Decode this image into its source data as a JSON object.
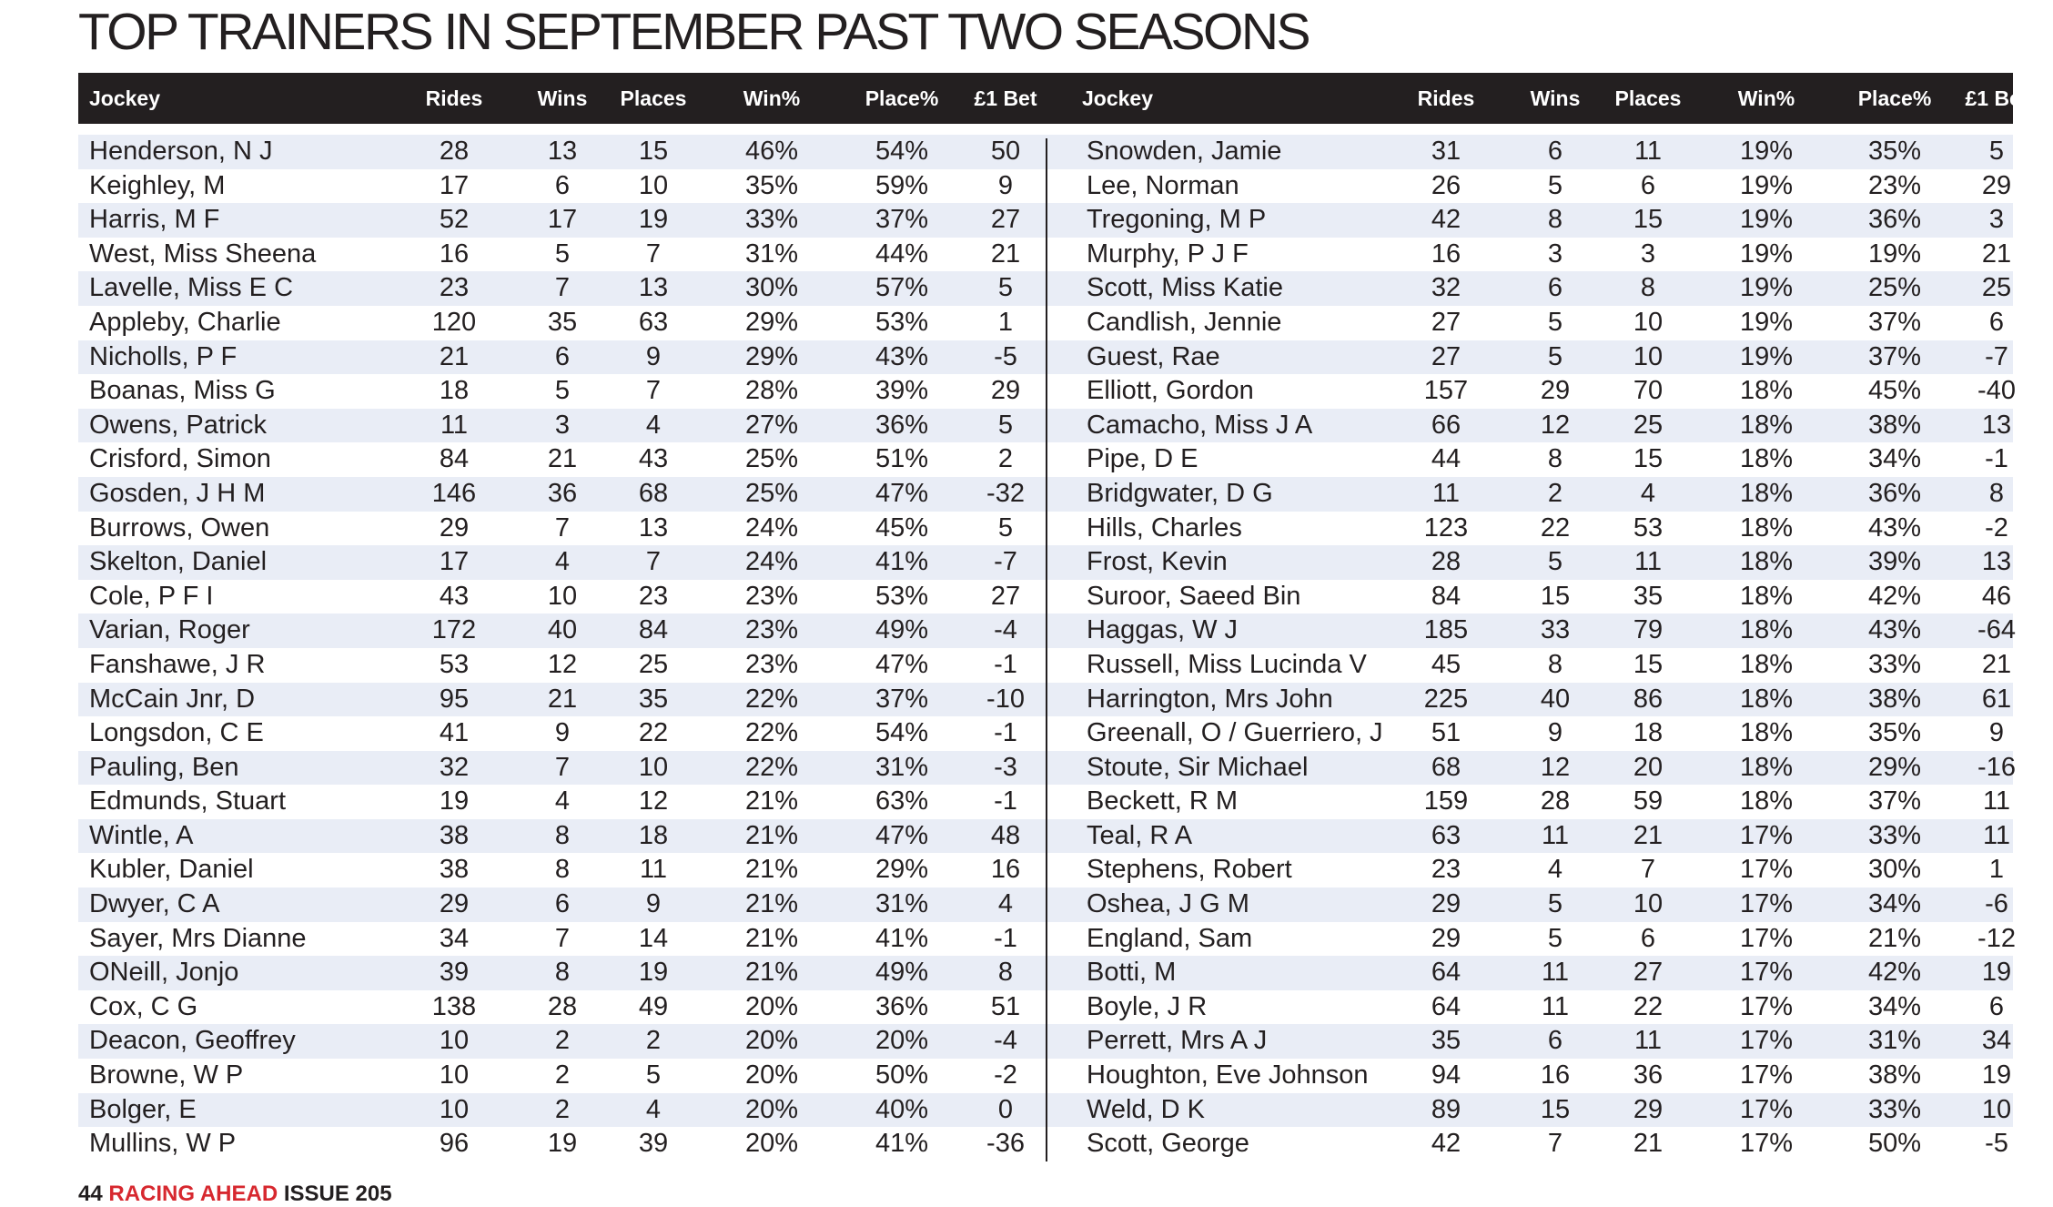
{
  "title": "TOP TRAINERS IN SEPTEMBER PAST TWO SEASONS",
  "columns": [
    "Jockey",
    "Rides",
    "Wins",
    "Places",
    "Win%",
    "Place%",
    "£1 Bet"
  ],
  "left_rows": [
    [
      "Henderson, N J",
      "28",
      "13",
      "15",
      "46%",
      "54%",
      "50"
    ],
    [
      "Keighley, M",
      "17",
      "6",
      "10",
      "35%",
      "59%",
      "9"
    ],
    [
      "Harris, M F",
      "52",
      "17",
      "19",
      "33%",
      "37%",
      "27"
    ],
    [
      "West, Miss Sheena",
      "16",
      "5",
      "7",
      "31%",
      "44%",
      "21"
    ],
    [
      "Lavelle, Miss E C",
      "23",
      "7",
      "13",
      "30%",
      "57%",
      "5"
    ],
    [
      "Appleby, Charlie",
      "120",
      "35",
      "63",
      "29%",
      "53%",
      "1"
    ],
    [
      "Nicholls, P F",
      "21",
      "6",
      "9",
      "29%",
      "43%",
      "-5"
    ],
    [
      "Boanas, Miss G",
      "18",
      "5",
      "7",
      "28%",
      "39%",
      "29"
    ],
    [
      "Owens, Patrick",
      "11",
      "3",
      "4",
      "27%",
      "36%",
      "5"
    ],
    [
      "Crisford, Simon",
      "84",
      "21",
      "43",
      "25%",
      "51%",
      "2"
    ],
    [
      "Gosden, J H M",
      "146",
      "36",
      "68",
      "25%",
      "47%",
      "-32"
    ],
    [
      "Burrows, Owen",
      "29",
      "7",
      "13",
      "24%",
      "45%",
      "5"
    ],
    [
      "Skelton, Daniel",
      "17",
      "4",
      "7",
      "24%",
      "41%",
      "-7"
    ],
    [
      "Cole, P F I",
      "43",
      "10",
      "23",
      "23%",
      "53%",
      "27"
    ],
    [
      "Varian, Roger",
      "172",
      "40",
      "84",
      "23%",
      "49%",
      "-4"
    ],
    [
      "Fanshawe, J R",
      "53",
      "12",
      "25",
      "23%",
      "47%",
      "-1"
    ],
    [
      "McCain Jnr, D",
      "95",
      "21",
      "35",
      "22%",
      "37%",
      "-10"
    ],
    [
      "Longsdon, C E",
      "41",
      "9",
      "22",
      "22%",
      "54%",
      "-1"
    ],
    [
      "Pauling, Ben",
      "32",
      "7",
      "10",
      "22%",
      "31%",
      "-3"
    ],
    [
      "Edmunds, Stuart",
      "19",
      "4",
      "12",
      "21%",
      "63%",
      "-1"
    ],
    [
      "Wintle, A",
      "38",
      "8",
      "18",
      "21%",
      "47%",
      "48"
    ],
    [
      "Kubler, Daniel",
      "38",
      "8",
      "11",
      "21%",
      "29%",
      "16"
    ],
    [
      "Dwyer, C A",
      "29",
      "6",
      "9",
      "21%",
      "31%",
      "4"
    ],
    [
      "Sayer, Mrs Dianne",
      "34",
      "7",
      "14",
      "21%",
      "41%",
      "-1"
    ],
    [
      "ONeill, Jonjo",
      "39",
      "8",
      "19",
      "21%",
      "49%",
      "8"
    ],
    [
      "Cox, C G",
      "138",
      "28",
      "49",
      "20%",
      "36%",
      "51"
    ],
    [
      "Deacon, Geoffrey",
      "10",
      "2",
      "2",
      "20%",
      "20%",
      "-4"
    ],
    [
      "Browne, W P",
      "10",
      "2",
      "5",
      "20%",
      "50%",
      "-2"
    ],
    [
      "Bolger, E",
      "10",
      "2",
      "4",
      "20%",
      "40%",
      "0"
    ],
    [
      "Mullins, W P",
      "96",
      "19",
      "39",
      "20%",
      "41%",
      "-36"
    ]
  ],
  "right_rows": [
    [
      "Snowden, Jamie",
      "31",
      "6",
      "11",
      "19%",
      "35%",
      "5"
    ],
    [
      "Lee, Norman",
      "26",
      "5",
      "6",
      "19%",
      "23%",
      "29"
    ],
    [
      "Tregoning, M P",
      "42",
      "8",
      "15",
      "19%",
      "36%",
      "3"
    ],
    [
      "Murphy, P J F",
      "16",
      "3",
      "3",
      "19%",
      "19%",
      "21"
    ],
    [
      "Scott, Miss Katie",
      "32",
      "6",
      "8",
      "19%",
      "25%",
      "25"
    ],
    [
      "Candlish, Jennie",
      "27",
      "5",
      "10",
      "19%",
      "37%",
      "6"
    ],
    [
      "Guest, Rae",
      "27",
      "5",
      "10",
      "19%",
      "37%",
      "-7"
    ],
    [
      "Elliott, Gordon",
      "157",
      "29",
      "70",
      "18%",
      "45%",
      "-40"
    ],
    [
      "Camacho, Miss J A",
      "66",
      "12",
      "25",
      "18%",
      "38%",
      "13"
    ],
    [
      "Pipe, D E",
      "44",
      "8",
      "15",
      "18%",
      "34%",
      "-1"
    ],
    [
      "Bridgwater, D G",
      "11",
      "2",
      "4",
      "18%",
      "36%",
      "8"
    ],
    [
      "Hills, Charles",
      "123",
      "22",
      "53",
      "18%",
      "43%",
      "-2"
    ],
    [
      "Frost, Kevin",
      "28",
      "5",
      "11",
      "18%",
      "39%",
      "13"
    ],
    [
      "Suroor, Saeed Bin",
      "84",
      "15",
      "35",
      "18%",
      "42%",
      "46"
    ],
    [
      "Haggas, W J",
      "185",
      "33",
      "79",
      "18%",
      "43%",
      "-64"
    ],
    [
      "Russell, Miss Lucinda V",
      "45",
      "8",
      "15",
      "18%",
      "33%",
      "21"
    ],
    [
      "Harrington, Mrs John",
      "225",
      "40",
      "86",
      "18%",
      "38%",
      "61"
    ],
    [
      "Greenall, O / Guerriero, J",
      "51",
      "9",
      "18",
      "18%",
      "35%",
      "9"
    ],
    [
      "Stoute, Sir Michael",
      "68",
      "12",
      "20",
      "18%",
      "29%",
      "-16"
    ],
    [
      "Beckett, R M",
      "159",
      "28",
      "59",
      "18%",
      "37%",
      "11"
    ],
    [
      "Teal, R A",
      "63",
      "11",
      "21",
      "17%",
      "33%",
      "11"
    ],
    [
      "Stephens, Robert",
      "23",
      "4",
      "7",
      "17%",
      "30%",
      "1"
    ],
    [
      "Oshea, J G M",
      "29",
      "5",
      "10",
      "17%",
      "34%",
      "-6"
    ],
    [
      "England, Sam",
      "29",
      "5",
      "6",
      "17%",
      "21%",
      "-12"
    ],
    [
      "Botti, M",
      "64",
      "11",
      "27",
      "17%",
      "42%",
      "19"
    ],
    [
      "Boyle, J R",
      "64",
      "11",
      "22",
      "17%",
      "34%",
      "6"
    ],
    [
      "Perrett, Mrs A J",
      "35",
      "6",
      "11",
      "17%",
      "31%",
      "34"
    ],
    [
      "Houghton, Eve Johnson",
      "94",
      "16",
      "36",
      "17%",
      "38%",
      "19"
    ],
    [
      "Weld, D K",
      "89",
      "15",
      "29",
      "17%",
      "33%",
      "10"
    ],
    [
      "Scott, George",
      "42",
      "7",
      "21",
      "17%",
      "50%",
      "-5"
    ]
  ],
  "footer": {
    "page": "44",
    "brand": "RACING AHEAD",
    "issue": "ISSUE 205"
  }
}
